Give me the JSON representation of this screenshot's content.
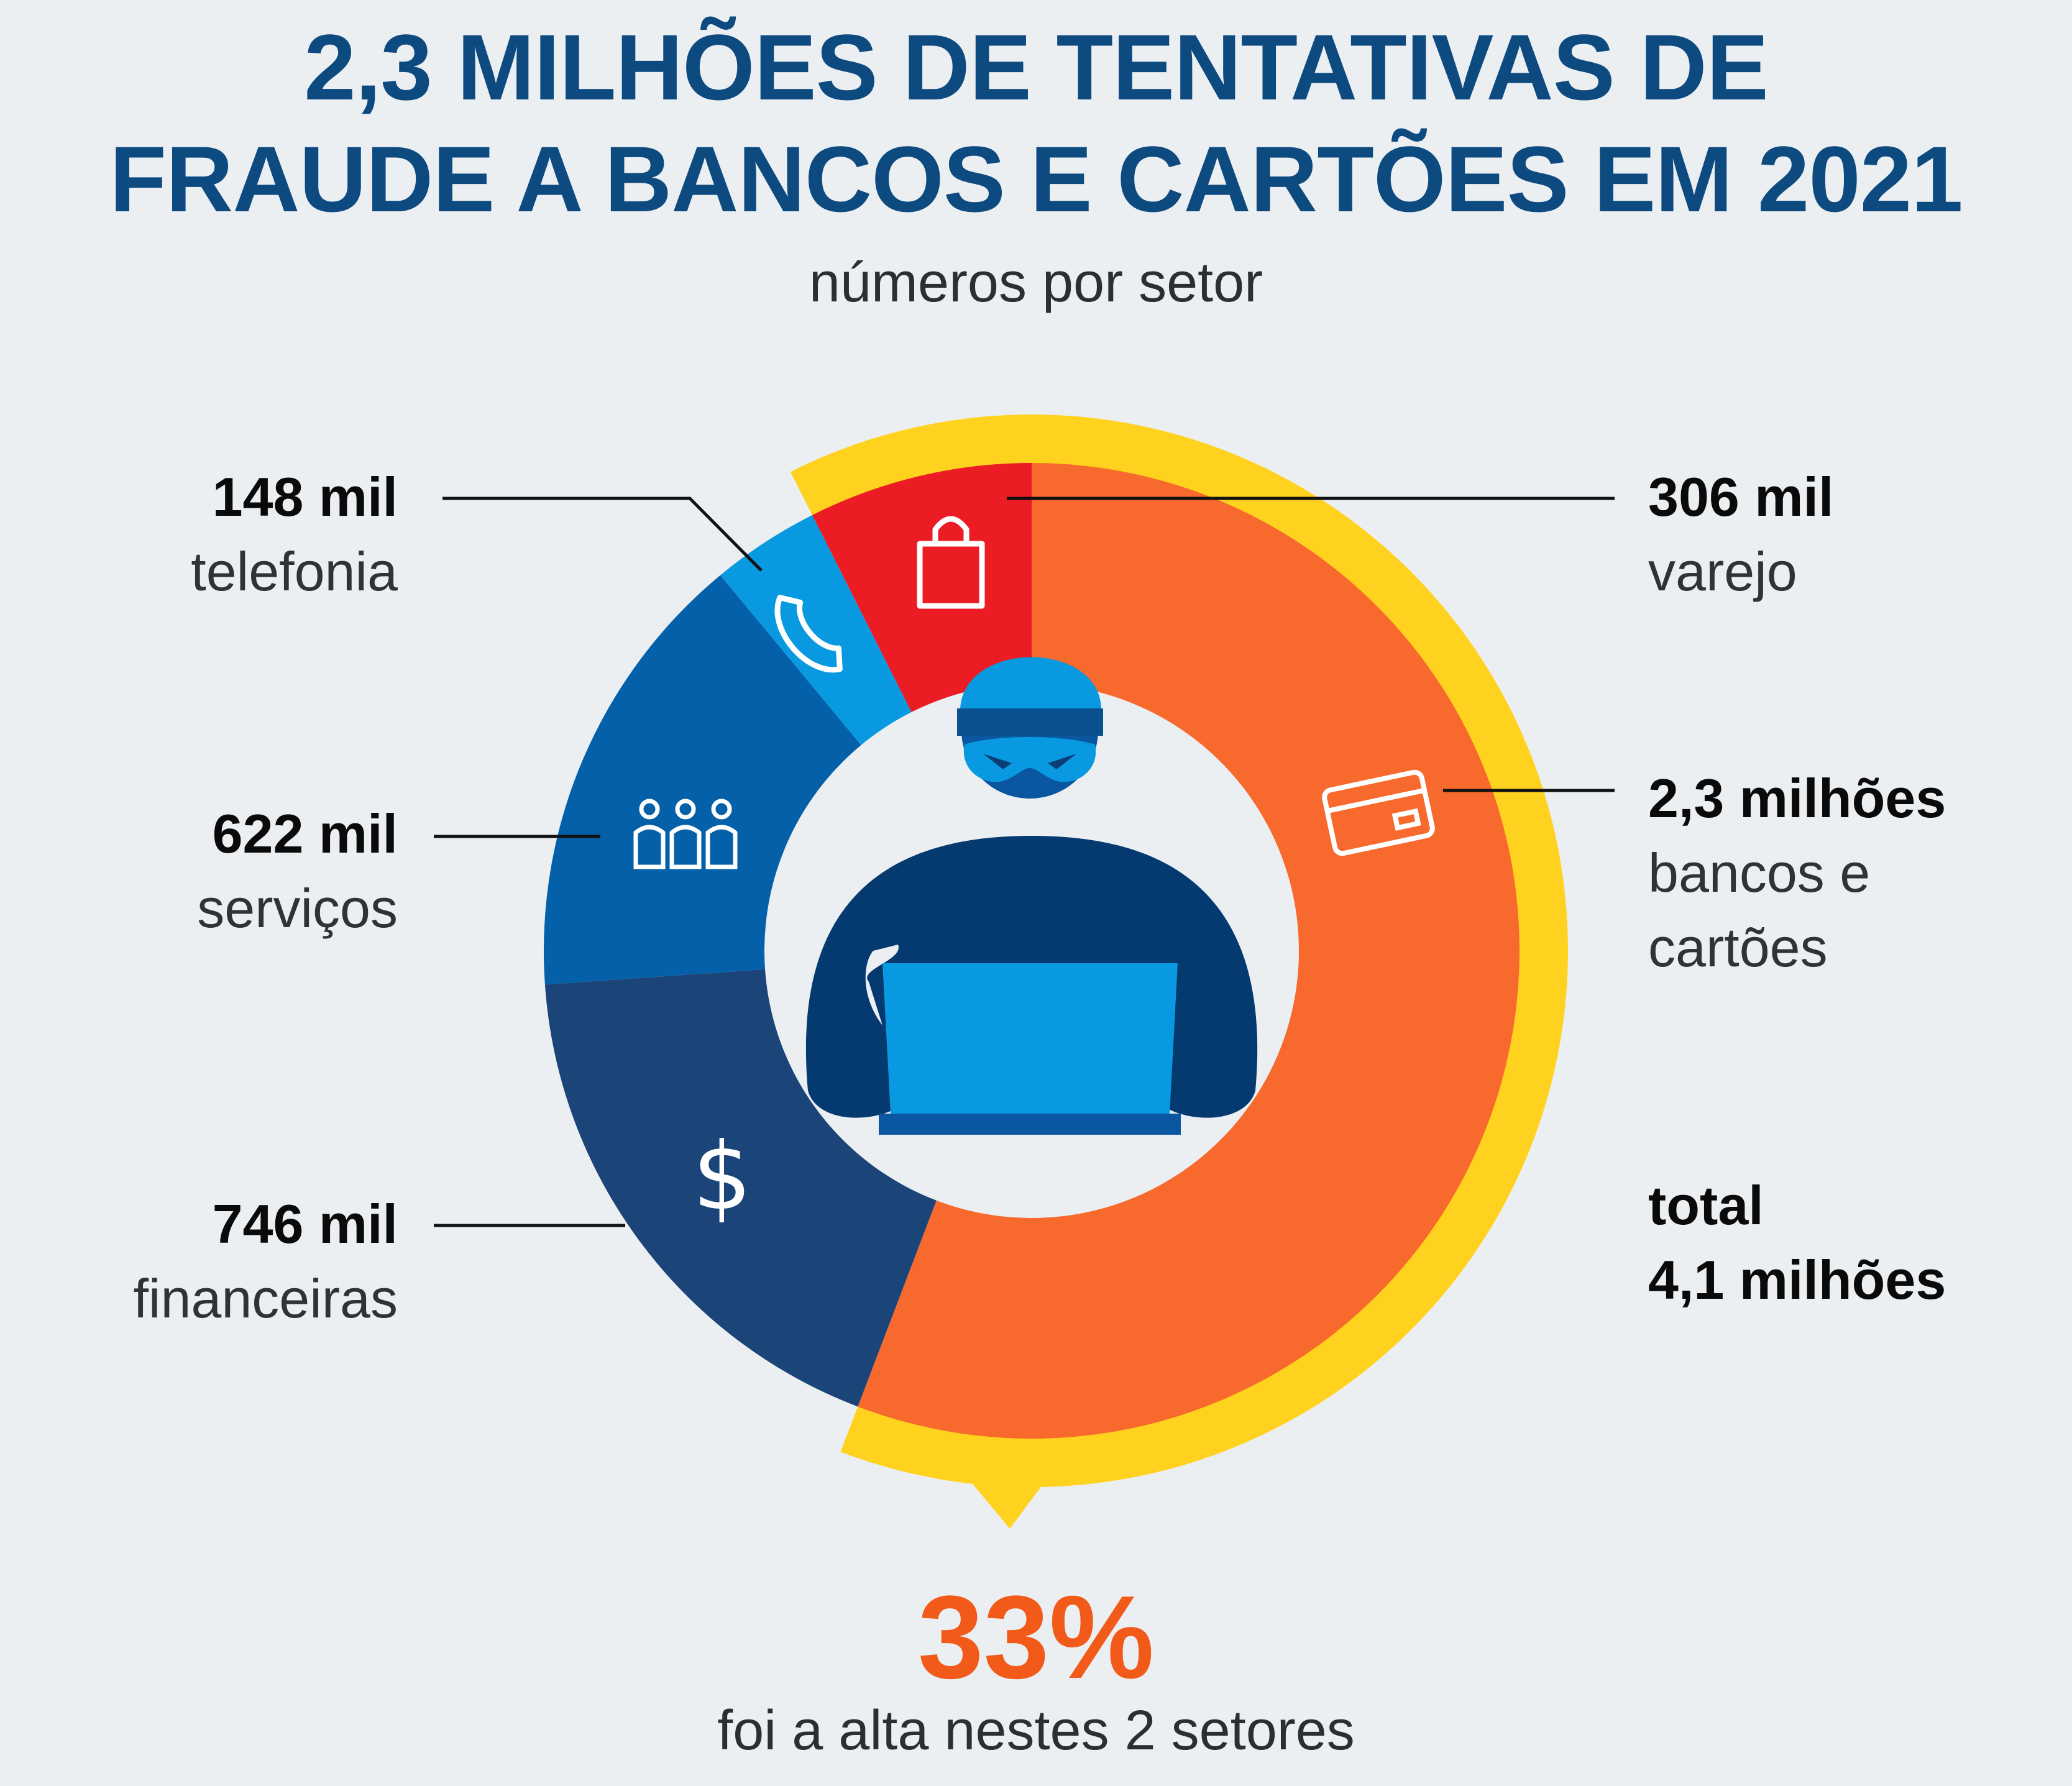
{
  "header": {
    "title_line1": "2,3 MILHÕES DE TENTATIVAS DE",
    "title_line2": "FRAUDE A BANCOS E CARTÕES EM 2021",
    "subtitle": "números por setor"
  },
  "chart_data": {
    "type": "pie",
    "variant": "donut",
    "unit": "tentativas de fraude",
    "categories": [
      "bancos e cartões",
      "financeiras",
      "serviços",
      "telefonia",
      "varejo"
    ],
    "values": [
      2300000,
      746000,
      622000,
      148000,
      306000
    ],
    "value_labels": [
      "2,3 milhões",
      "746 mil",
      "622 mil",
      "148 mil",
      "306 mil"
    ],
    "colors": [
      "#f8692d",
      "#1b4478",
      "#0460a9",
      "#0899e0",
      "#ec1c24"
    ],
    "highlight": {
      "categories": [
        "bancos e cartões",
        "varejo"
      ],
      "color": "#ffd21f"
    },
    "total_label": "total",
    "total_value": "4,1 milhões",
    "highlight_pct": "33%",
    "highlight_text": "foi a alta nestes 2 setores"
  },
  "icons": {
    "varejo": "shopping-bag-icon",
    "telefonia": "phone-icon",
    "servicos": "people-icon",
    "financeiras": "dollar-icon",
    "bancos_cartoes": "credit-card-icon",
    "center": "hacker-laptop-icon"
  }
}
